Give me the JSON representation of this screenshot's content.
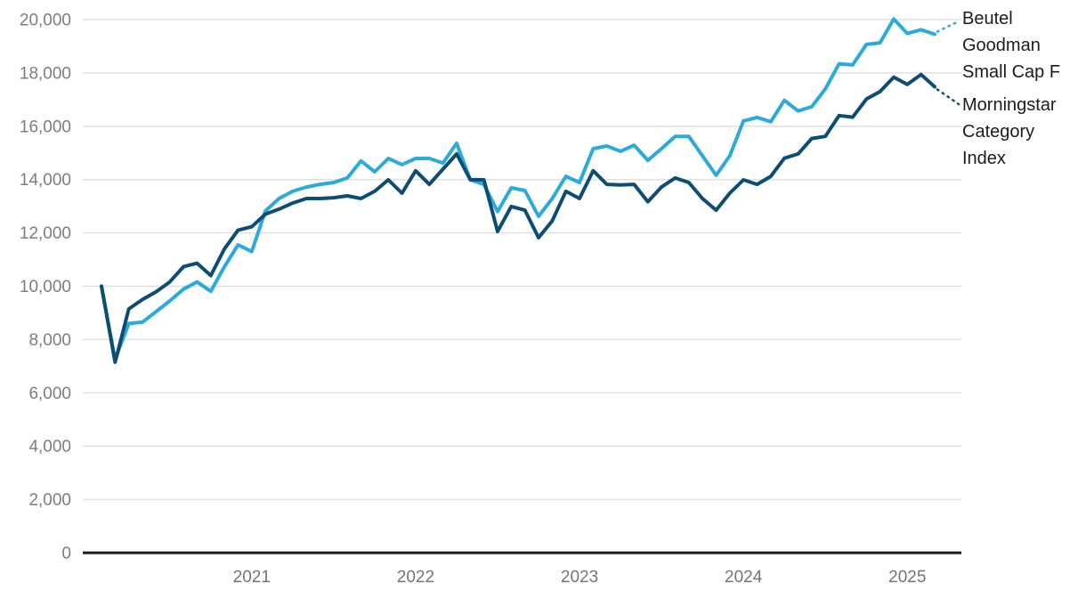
{
  "chart_data": {
    "type": "line",
    "title": "",
    "xlabel": "",
    "ylabel": "",
    "grid": true,
    "legend_position": "right",
    "ylim": [
      0,
      20500
    ],
    "x": [
      "2020-02",
      "2020-03",
      "2020-04",
      "2020-05",
      "2020-06",
      "2020-07",
      "2020-08",
      "2020-09",
      "2020-10",
      "2020-11",
      "2020-12",
      "2021-01",
      "2021-02",
      "2021-03",
      "2021-04",
      "2021-05",
      "2021-06",
      "2021-07",
      "2021-08",
      "2021-09",
      "2021-10",
      "2021-11",
      "2021-12",
      "2022-01",
      "2022-02",
      "2022-03",
      "2022-04",
      "2022-05",
      "2022-06",
      "2022-07",
      "2022-08",
      "2022-09",
      "2022-10",
      "2022-11",
      "2022-12",
      "2023-01",
      "2023-02",
      "2023-03",
      "2023-04",
      "2023-05",
      "2023-06",
      "2023-07",
      "2023-08",
      "2023-09",
      "2023-10",
      "2023-11",
      "2023-12",
      "2024-01",
      "2024-02",
      "2024-03",
      "2024-04",
      "2024-05",
      "2024-06",
      "2024-07",
      "2024-08",
      "2024-09",
      "2024-10",
      "2024-11",
      "2024-12",
      "2025-01",
      "2025-02",
      "2025-03"
    ],
    "series": [
      {
        "name": "Beutel Goodman Small Cap F",
        "color": "#2caadc",
        "values": [
          10000,
          7250,
          8600,
          8650,
          9050,
          9450,
          9890,
          10160,
          9810,
          10730,
          11550,
          11300,
          12820,
          13290,
          13560,
          13720,
          13820,
          13890,
          14060,
          14700,
          14290,
          14790,
          14560,
          14790,
          14790,
          14620,
          15360,
          13990,
          13820,
          12800,
          13690,
          13590,
          12620,
          13290,
          14120,
          13890,
          15160,
          15260,
          15060,
          15290,
          14720,
          15160,
          15620,
          15620,
          14890,
          14160,
          14890,
          16200,
          16330,
          16170,
          16970,
          16570,
          16730,
          17400,
          18340,
          18300,
          19070,
          19130,
          20020,
          19480,
          19620,
          19450
        ]
      },
      {
        "name": "Morningstar Category Index",
        "color": "#0e4d73",
        "values": [
          10000,
          7150,
          9150,
          9500,
          9790,
          10160,
          10730,
          10860,
          10400,
          11400,
          12100,
          12230,
          12700,
          12890,
          13120,
          13290,
          13290,
          13320,
          13390,
          13290,
          13560,
          13990,
          13490,
          14330,
          13820,
          14390,
          14960,
          14000,
          13990,
          12050,
          12990,
          12850,
          11820,
          12450,
          13560,
          13290,
          14330,
          13820,
          13800,
          13820,
          13170,
          13720,
          14060,
          13890,
          13290,
          12850,
          13490,
          13990,
          13820,
          14120,
          14800,
          14960,
          15540,
          15620,
          16400,
          16340,
          17020,
          17300,
          17840,
          17570,
          17940,
          17480
        ]
      }
    ],
    "y_axis": {
      "tick_values": [
        0,
        2000,
        4000,
        6000,
        8000,
        10000,
        12000,
        14000,
        16000,
        18000,
        20000
      ],
      "tick_labels": [
        "0",
        "2,000",
        "4,000",
        "6,000",
        "8,000",
        "10,000",
        "12,000",
        "14,000",
        "16,000",
        "18,000",
        "20,000"
      ]
    },
    "x_axis": {
      "tick_labels": [
        "2021",
        "2022",
        "2023",
        "2024",
        "2025"
      ],
      "tick_month_indices": [
        11,
        23,
        35,
        47,
        59
      ]
    }
  },
  "legend": [
    {
      "full_name": "Beutel Goodman Small Cap F",
      "lines": [
        "Beutel",
        "Goodman",
        "Small Cap F"
      ],
      "color": "#2caadc"
    },
    {
      "full_name": "Morningstar Category Index",
      "lines": [
        "Morningstar",
        "Category",
        "Index"
      ],
      "color": "#0e4d73"
    }
  ],
  "colors": {
    "fund_line": "#2caadc",
    "index_line": "#0e4d73",
    "gridline": "#e0e0e0",
    "zero_axis": "#1a1a1a",
    "y_tick_text": "#7d7d7d",
    "x_tick_text": "#757575",
    "legend_text": "#1c1c1c",
    "background": "#ffffff"
  }
}
